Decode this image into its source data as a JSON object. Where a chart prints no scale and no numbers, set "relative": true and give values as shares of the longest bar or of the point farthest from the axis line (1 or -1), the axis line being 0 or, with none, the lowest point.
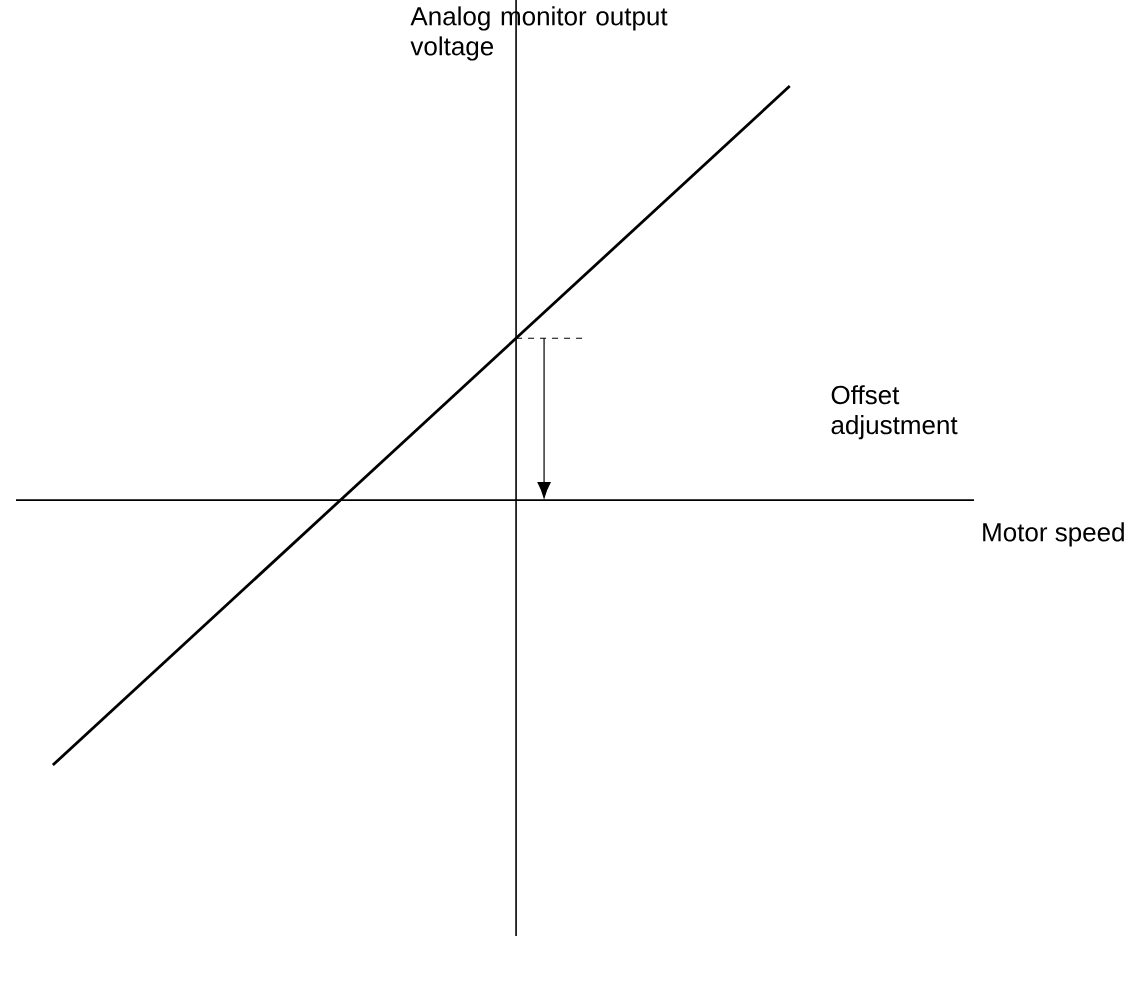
{
  "chart_data": {
    "type": "line",
    "relative": true,
    "xlabel": "Motor speed",
    "ylabel": "Analog monitor output voltage",
    "categories": [
      null,
      null,
      null,
      null,
      null,
      null,
      null,
      null,
      null,
      null,
      null,
      null,
      null,
      null,
      null,
      null,
      null,
      null,
      null,
      null,
      null,
      null,
      null,
      null,
      null,
      null,
      null
    ],
    "series": [
      {
        "color": "#000000",
        "values": [
          null,
          -0.64,
          null,
          null,
          null,
          null,
          null,
          null,
          null,
          null,
          null,
          null,
          null,
          null,
          null,
          null,
          null,
          null,
          null,
          null,
          null,
          1,
          null,
          null,
          null,
          null,
          null
        ]
      }
    ],
    "annotations": [
      "Offset adjustment"
    ]
  }
}
